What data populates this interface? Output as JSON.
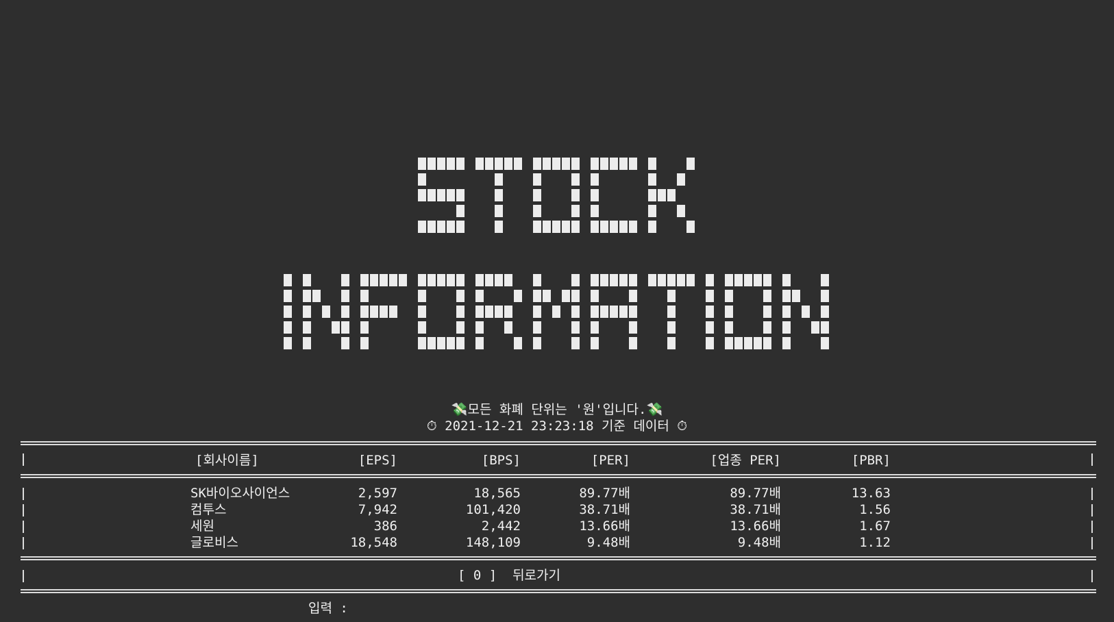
{
  "banner": {
    "line1": "STOCK",
    "line2": "INFORMATION"
  },
  "notice": {
    "currency": "💸모든 화폐 단위는 '원'입니다.💸",
    "timestamp": "⏱ 2021-12-21 23:23:18 기준 데이터 ⏱"
  },
  "table": {
    "headers": [
      "[회사이름]",
      "[EPS]",
      "[BPS]",
      "[PER]",
      "[업종 PER]",
      "[PBR]"
    ],
    "rows": [
      [
        "SK바이오사이언스",
        "2,597",
        "18,565",
        "89.77배",
        "89.77배",
        "13.63"
      ],
      [
        "컴투스",
        "7,942",
        "101,420",
        "38.71배",
        "38.71배",
        "1.56"
      ],
      [
        "세원",
        "386",
        "2,442",
        "13.66배",
        "13.66배",
        "1.67"
      ],
      [
        "글로비스",
        "18,548",
        "148,109",
        "9.48배",
        "9.48배",
        "1.12"
      ]
    ]
  },
  "menu": {
    "back_option": "[ 0 ]  뒤로가기"
  },
  "input": {
    "label": "입력 :"
  },
  "colors": {
    "background": "#2e2e2e",
    "text": "#f0f0f0"
  }
}
